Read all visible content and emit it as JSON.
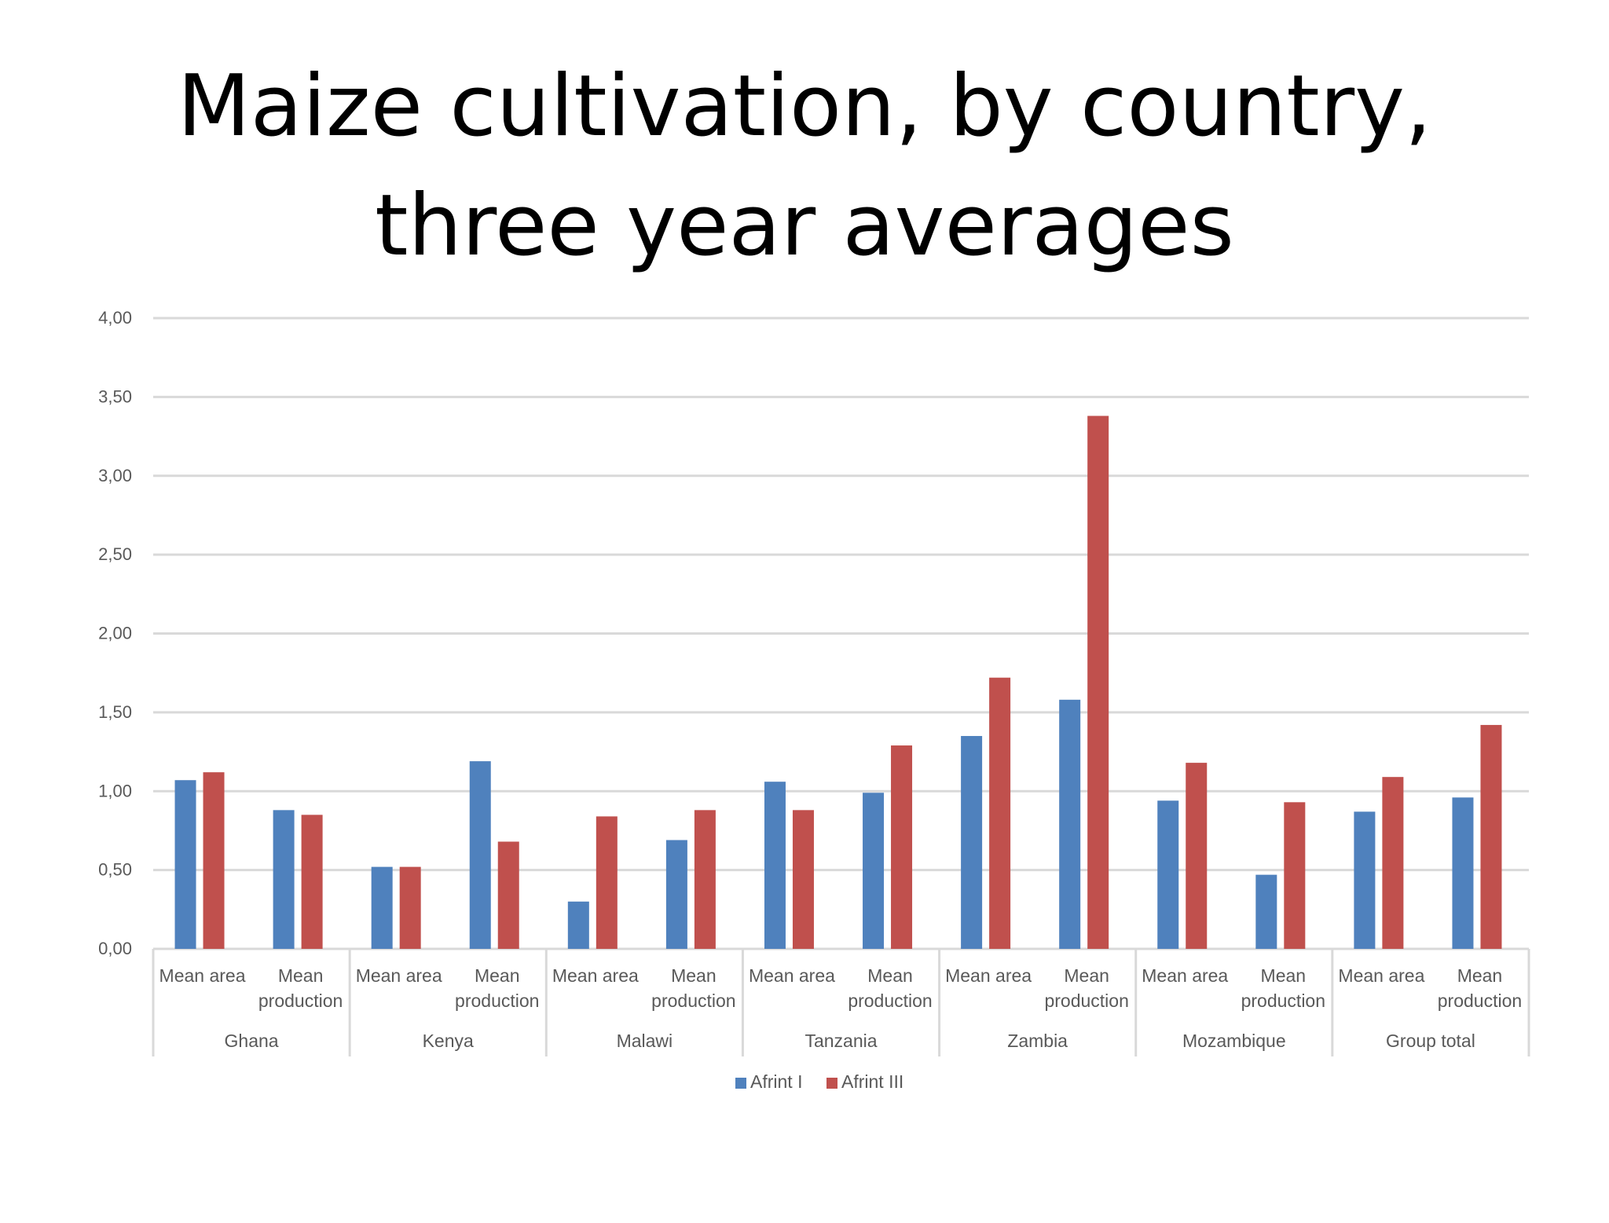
{
  "title": {
    "line1": "Maize cultivation, by country,",
    "line2": "three year averages"
  },
  "chart_data": {
    "type": "bar",
    "ylim": [
      0,
      4
    ],
    "yticks": [
      "0,00",
      "0,50",
      "1,00",
      "1,50",
      "2,00",
      "2,50",
      "3,00",
      "3,50",
      "4,00"
    ],
    "grid": true,
    "legend_position": "bottom",
    "groups": [
      {
        "name": "Ghana",
        "categories": [
          "Mean area",
          "Mean production"
        ]
      },
      {
        "name": "Kenya",
        "categories": [
          "Mean area",
          "Mean production"
        ]
      },
      {
        "name": "Malawi",
        "categories": [
          "Mean area",
          "Mean production"
        ]
      },
      {
        "name": "Tanzania",
        "categories": [
          "Mean area",
          "Mean production"
        ]
      },
      {
        "name": "Zambia",
        "categories": [
          "Mean area",
          "Mean production"
        ]
      },
      {
        "name": "Mozambique",
        "categories": [
          "Mean area",
          "Mean production"
        ]
      },
      {
        "name": "Group total",
        "categories": [
          "Mean area",
          "Mean production"
        ]
      }
    ],
    "series": [
      {
        "name": "Afrint I",
        "color": "#4F81BD",
        "values": [
          1.07,
          0.88,
          0.52,
          1.19,
          0.3,
          0.69,
          1.06,
          0.99,
          1.35,
          1.58,
          0.94,
          0.47,
          0.87,
          0.96
        ]
      },
      {
        "name": "Afrint III",
        "color": "#C0504D",
        "values": [
          1.12,
          0.85,
          0.52,
          0.68,
          0.84,
          0.88,
          0.88,
          1.29,
          1.72,
          3.38,
          1.18,
          0.93,
          1.09,
          1.42
        ]
      }
    ],
    "colors": {
      "grid": "#D9D9D9",
      "axis_text": "#595959"
    }
  }
}
